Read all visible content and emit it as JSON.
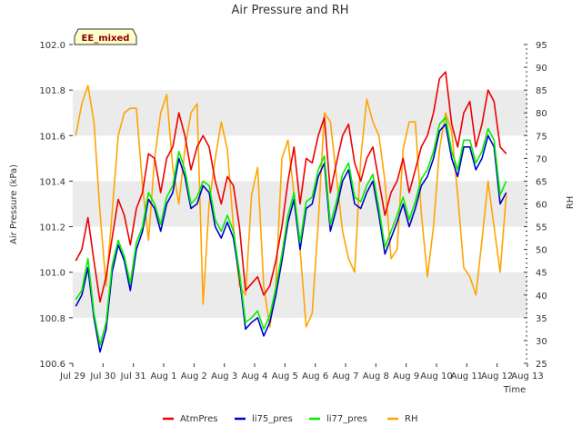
{
  "chart_data": {
    "type": "line",
    "title": "Air Pressure and RH",
    "badge": "EE_mixed",
    "xlabel": "Time",
    "ylabel_left": "Air Pressure (kPa)",
    "ylabel_right": "RH",
    "x_ticks": [
      "Jul 29",
      "Jul 30",
      "Jul 31",
      "Aug 1",
      "Aug 2",
      "Aug 3",
      "Aug 4",
      "Aug 5",
      "Aug 6",
      "Aug 7",
      "Aug 8",
      "Aug 9",
      "Aug 10",
      "Aug 11",
      "Aug 12",
      "Aug 13"
    ],
    "y_left_ticks": [
      "100.6",
      "100.8",
      "101.0",
      "101.2",
      "101.4",
      "101.6",
      "101.8",
      "102.0"
    ],
    "y_right_ticks": [
      "25",
      "30",
      "35",
      "40",
      "45",
      "50",
      "55",
      "60",
      "65",
      "70",
      "75",
      "80",
      "85",
      "90",
      "95"
    ],
    "ylim_left": [
      100.6,
      102.0
    ],
    "ylim_right": [
      25,
      95
    ],
    "xlim_days": [
      0,
      15
    ],
    "grid": "horizontal bands",
    "legend_position": "bottom",
    "colors": {
      "AtmPres": "#ee0000",
      "li75_pres": "#0000cc",
      "li77_pres": "#00ee00",
      "RH": "#ffa500",
      "band": "#ebebeb",
      "badge_bg": "#ffffcc"
    },
    "x_day": [
      0.1,
      0.3,
      0.5,
      0.7,
      0.9,
      1.1,
      1.3,
      1.5,
      1.7,
      1.9,
      2.1,
      2.3,
      2.5,
      2.7,
      2.9,
      3.1,
      3.3,
      3.5,
      3.7,
      3.9,
      4.1,
      4.3,
      4.5,
      4.7,
      4.9,
      5.1,
      5.3,
      5.5,
      5.7,
      5.9,
      6.1,
      6.3,
      6.5,
      6.7,
      6.9,
      7.1,
      7.3,
      7.5,
      7.7,
      7.9,
      8.1,
      8.3,
      8.5,
      8.7,
      8.9,
      9.1,
      9.3,
      9.5,
      9.7,
      9.9,
      10.1,
      10.3,
      10.5,
      10.7,
      10.9,
      11.1,
      11.3,
      11.5,
      11.7,
      11.9,
      12.1,
      12.3,
      12.5,
      12.7,
      12.9,
      13.1,
      13.3,
      13.5,
      13.7,
      13.9,
      14.1,
      14.3
    ],
    "series": [
      {
        "name": "AtmPres",
        "axis": "left",
        "values": [
          101.05,
          101.1,
          101.24,
          101.05,
          100.87,
          100.98,
          101.15,
          101.32,
          101.25,
          101.12,
          101.28,
          101.35,
          101.52,
          101.5,
          101.35,
          101.5,
          101.55,
          101.7,
          101.6,
          101.45,
          101.55,
          101.6,
          101.55,
          101.4,
          101.3,
          101.42,
          101.38,
          101.2,
          100.92,
          100.95,
          100.98,
          100.9,
          100.94,
          101.05,
          101.2,
          101.4,
          101.55,
          101.3,
          101.5,
          101.48,
          101.6,
          101.68,
          101.35,
          101.48,
          101.6,
          101.65,
          101.48,
          101.4,
          101.5,
          101.55,
          101.4,
          101.25,
          101.35,
          101.4,
          101.5,
          101.35,
          101.45,
          101.55,
          101.6,
          101.7,
          101.85,
          101.88,
          101.65,
          101.55,
          101.7,
          101.75,
          101.55,
          101.65,
          101.8,
          101.75,
          101.55,
          101.52
        ]
      },
      {
        "name": "li75_pres",
        "axis": "left",
        "values": [
          100.85,
          100.9,
          101.02,
          100.8,
          100.65,
          100.75,
          101.0,
          101.12,
          101.05,
          100.92,
          101.1,
          101.18,
          101.32,
          101.28,
          101.18,
          101.3,
          101.35,
          101.5,
          101.42,
          101.28,
          101.3,
          101.38,
          101.35,
          101.2,
          101.15,
          101.22,
          101.15,
          100.98,
          100.75,
          100.78,
          100.8,
          100.72,
          100.78,
          100.9,
          101.05,
          101.22,
          101.32,
          101.1,
          101.28,
          101.3,
          101.42,
          101.48,
          101.18,
          101.28,
          101.4,
          101.45,
          101.3,
          101.28,
          101.35,
          101.4,
          101.25,
          101.08,
          101.15,
          101.22,
          101.3,
          101.2,
          101.28,
          101.38,
          101.42,
          101.5,
          101.62,
          101.65,
          101.5,
          101.42,
          101.55,
          101.55,
          101.45,
          101.5,
          101.6,
          101.55,
          101.3,
          101.35
        ]
      },
      {
        "name": "li77_pres",
        "axis": "left",
        "values": [
          100.88,
          100.92,
          101.06,
          100.82,
          100.68,
          100.78,
          101.03,
          101.14,
          101.07,
          100.95,
          101.13,
          101.2,
          101.35,
          101.3,
          101.21,
          101.33,
          101.38,
          101.53,
          101.45,
          101.3,
          101.33,
          101.4,
          101.38,
          101.23,
          101.18,
          101.25,
          101.18,
          101.0,
          100.78,
          100.8,
          100.83,
          100.75,
          100.81,
          100.93,
          101.08,
          101.25,
          101.35,
          101.13,
          101.31,
          101.33,
          101.45,
          101.51,
          101.21,
          101.31,
          101.43,
          101.48,
          101.33,
          101.31,
          101.38,
          101.43,
          101.28,
          101.11,
          101.18,
          101.25,
          101.33,
          101.23,
          101.31,
          101.41,
          101.45,
          101.53,
          101.65,
          101.68,
          101.53,
          101.45,
          101.58,
          101.58,
          101.48,
          101.53,
          101.63,
          101.58,
          101.34,
          101.4
        ]
      },
      {
        "name": "RH",
        "axis": "right",
        "values": [
          75,
          82,
          86,
          78,
          58,
          42,
          58,
          75,
          80,
          81,
          81,
          64,
          52,
          70,
          80,
          84,
          68,
          60,
          72,
          80,
          82,
          38,
          60,
          70,
          78,
          72,
          55,
          42,
          40,
          62,
          68,
          42,
          33,
          42,
          70,
          74,
          62,
          50,
          33,
          36,
          56,
          80,
          78,
          66,
          54,
          48,
          45,
          70,
          83,
          78,
          75,
          65,
          48,
          50,
          72,
          78,
          78,
          58,
          44,
          55,
          72,
          80,
          76,
          62,
          46,
          44,
          40,
          52,
          65,
          55,
          45,
          62
        ]
      }
    ]
  }
}
